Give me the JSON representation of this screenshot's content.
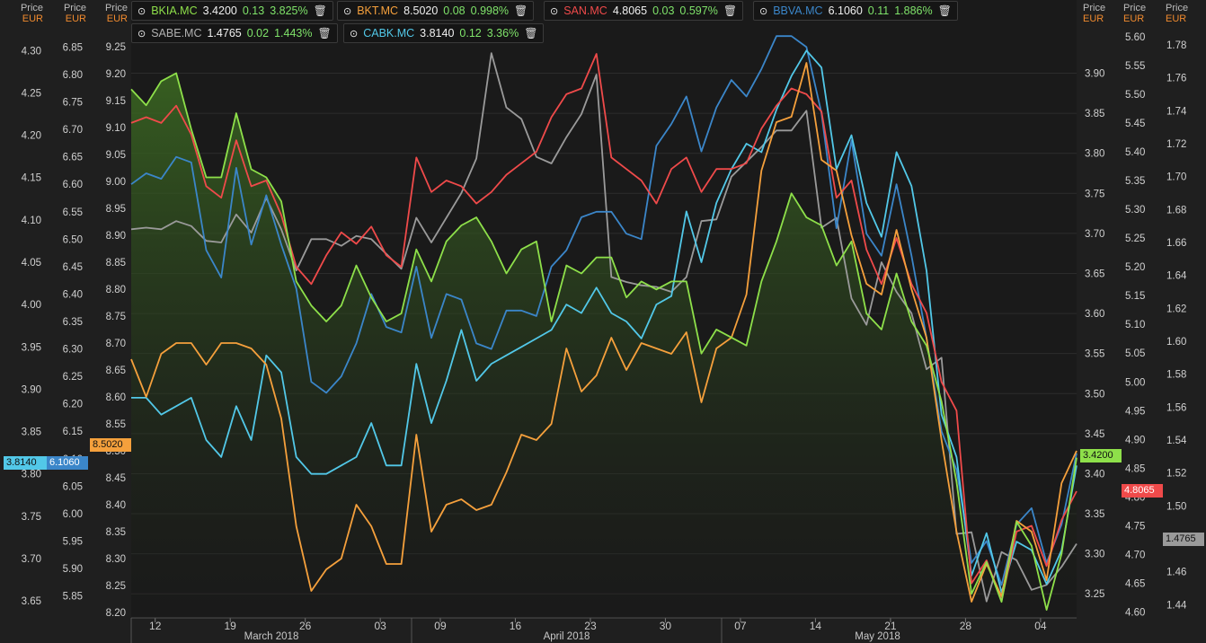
{
  "axis_header": {
    "price": "Price",
    "currency": "EUR"
  },
  "legend": [
    {
      "symbol": "BKIA.MC",
      "value": "3.4200",
      "change": "0.13",
      "change_pct": "3.825%",
      "color": "#8ee04a"
    },
    {
      "symbol": "BKT.MC",
      "value": "8.5020",
      "change": "0.08",
      "change_pct": "0.998%",
      "color": "#f5a03c"
    },
    {
      "symbol": "SAN.MC",
      "value": "4.8065",
      "change": "0.03",
      "change_pct": "0.597%",
      "color": "#ef4a4a"
    },
    {
      "symbol": "BBVA.MC",
      "value": "6.1060",
      "change": "0.11",
      "change_pct": "1.886%",
      "color": "#3b86c9"
    },
    {
      "symbol": "SABE.MC",
      "value": "1.4765",
      "change": "0.02",
      "change_pct": "1.443%",
      "color": "#9a9a9a"
    },
    {
      "symbol": "CABK.MC",
      "value": "3.8140",
      "change": "0.12",
      "change_pct": "3.36%",
      "color": "#52c8e8"
    }
  ],
  "last_value_tags": {
    "cabk": "3.8140",
    "bbva": "6.1060",
    "bkt": "8.5020",
    "bkia": "3.4200",
    "san": "4.8065",
    "sabe": "1.4765"
  },
  "chart_data": {
    "type": "line",
    "x_ticks": [
      "12",
      "19",
      "26",
      "03",
      "09",
      "16",
      "23",
      "30",
      "07",
      "14",
      "21",
      "28",
      "04"
    ],
    "x_month_labels": [
      "March 2018",
      "April 2018",
      "May 2018"
    ],
    "axes": {
      "cabk": {
        "ylim": [
          3.63,
          4.33
        ],
        "ticks": [
          "4.30",
          "4.25",
          "4.20",
          "4.15",
          "4.10",
          "4.05",
          "4.00",
          "3.95",
          "3.90",
          "3.85",
          "3.80",
          "3.75",
          "3.70",
          "3.65"
        ]
      },
      "bbva": {
        "ylim": [
          5.81,
          6.89
        ],
        "ticks": [
          "6.85",
          "6.80",
          "6.75",
          "6.70",
          "6.65",
          "6.60",
          "6.55",
          "6.50",
          "6.45",
          "6.40",
          "6.35",
          "6.30",
          "6.25",
          "6.20",
          "6.15",
          "6.10",
          "6.05",
          "6.00",
          "5.95",
          "5.90",
          "5.85"
        ]
      },
      "bkt": {
        "ylim": [
          8.19,
          9.29
        ],
        "ticks": [
          "9.25",
          "9.20",
          "9.15",
          "9.10",
          "9.05",
          "9.00",
          "8.95",
          "8.90",
          "8.85",
          "8.80",
          "8.75",
          "8.70",
          "8.65",
          "8.60",
          "8.55",
          "8.50",
          "8.45",
          "8.40",
          "8.35",
          "8.30",
          "8.25",
          "8.20"
        ]
      },
      "bkia": {
        "ylim": [
          3.22,
          3.96
        ],
        "ticks": [
          "3.90",
          "3.85",
          "3.80",
          "3.75",
          "3.70",
          "3.65",
          "3.60",
          "3.55",
          "3.50",
          "3.45",
          "3.40",
          "3.35",
          "3.30",
          "3.25"
        ]
      },
      "san": {
        "ylim": [
          4.59,
          5.62
        ],
        "ticks": [
          "5.60",
          "5.55",
          "5.50",
          "5.45",
          "5.40",
          "5.35",
          "5.30",
          "5.25",
          "5.20",
          "5.15",
          "5.10",
          "5.05",
          "5.00",
          "4.95",
          "4.90",
          "4.85",
          "4.80",
          "4.75",
          "4.70",
          "4.65",
          "4.60"
        ]
      },
      "sabe": {
        "ylim": [
          1.432,
          1.792
        ],
        "ticks": [
          "1.78",
          "1.76",
          "1.74",
          "1.72",
          "1.70",
          "1.68",
          "1.66",
          "1.64",
          "1.62",
          "1.60",
          "1.58",
          "1.56",
          "1.54",
          "1.52",
          "1.50",
          "1.46",
          "1.44"
        ]
      }
    },
    "series": [
      {
        "name": "BKIA.MC",
        "axis": "bkia",
        "color": "#8ee04a",
        "values": [
          3.88,
          3.86,
          3.89,
          3.9,
          3.83,
          3.77,
          3.77,
          3.85,
          3.78,
          3.77,
          3.74,
          3.64,
          3.61,
          3.59,
          3.61,
          3.66,
          3.62,
          3.59,
          3.6,
          3.68,
          3.64,
          3.69,
          3.71,
          3.72,
          3.69,
          3.65,
          3.68,
          3.69,
          3.59,
          3.66,
          3.65,
          3.67,
          3.67,
          3.62,
          3.64,
          3.63,
          3.64,
          3.64,
          3.55,
          3.58,
          3.57,
          3.56,
          3.64,
          3.69,
          3.75,
          3.72,
          3.71,
          3.66,
          3.69,
          3.6,
          3.58,
          3.65,
          3.59,
          3.56,
          3.49,
          3.39,
          3.25,
          3.29,
          3.24,
          3.34,
          3.31,
          3.23,
          3.3,
          3.42
        ]
      },
      {
        "name": "BKT.MC",
        "axis": "bkt",
        "color": "#f5a03c",
        "values": [
          8.67,
          8.6,
          8.68,
          8.7,
          8.7,
          8.66,
          8.7,
          8.7,
          8.69,
          8.66,
          8.56,
          8.36,
          8.24,
          8.28,
          8.3,
          8.4,
          8.36,
          8.29,
          8.29,
          8.53,
          8.35,
          8.4,
          8.41,
          8.39,
          8.4,
          8.46,
          8.53,
          8.52,
          8.55,
          8.69,
          8.61,
          8.64,
          8.71,
          8.65,
          8.7,
          8.69,
          8.68,
          8.72,
          8.59,
          8.69,
          8.71,
          8.79,
          9.02,
          9.11,
          9.12,
          9.22,
          9.04,
          9.02,
          8.9,
          8.81,
          8.79,
          8.91,
          8.8,
          8.71,
          8.52,
          8.35,
          8.22,
          8.29,
          8.23,
          8.37,
          8.35,
          8.26,
          8.44,
          8.5
        ]
      },
      {
        "name": "SAN.MC",
        "axis": "san",
        "color": "#ef4a4a",
        "values": [
          5.45,
          5.46,
          5.45,
          5.48,
          5.43,
          5.34,
          5.32,
          5.42,
          5.34,
          5.35,
          5.29,
          5.2,
          5.17,
          5.22,
          5.26,
          5.24,
          5.27,
          5.22,
          5.2,
          5.39,
          5.33,
          5.35,
          5.34,
          5.31,
          5.33,
          5.36,
          5.38,
          5.4,
          5.46,
          5.5,
          5.51,
          5.57,
          5.39,
          5.37,
          5.35,
          5.31,
          5.37,
          5.39,
          5.33,
          5.37,
          5.37,
          5.38,
          5.44,
          5.48,
          5.51,
          5.5,
          5.47,
          5.32,
          5.35,
          5.23,
          5.17,
          5.25,
          5.17,
          5.12,
          5.0,
          4.95,
          4.65,
          4.69,
          4.62,
          4.74,
          4.75,
          4.68,
          4.76,
          4.81
        ]
      },
      {
        "name": "BBVA.MC",
        "axis": "bbva",
        "color": "#3b86c9",
        "values": [
          6.6,
          6.62,
          6.61,
          6.65,
          6.64,
          6.48,
          6.43,
          6.63,
          6.49,
          6.58,
          6.49,
          6.41,
          6.24,
          6.22,
          6.25,
          6.31,
          6.4,
          6.34,
          6.33,
          6.45,
          6.32,
          6.4,
          6.39,
          6.31,
          6.3,
          6.37,
          6.37,
          6.36,
          6.45,
          6.48,
          6.54,
          6.55,
          6.55,
          6.51,
          6.5,
          6.67,
          6.71,
          6.76,
          6.66,
          6.74,
          6.79,
          6.76,
          6.81,
          6.87,
          6.87,
          6.85,
          6.73,
          6.52,
          6.68,
          6.51,
          6.47,
          6.6,
          6.47,
          6.32,
          6.15,
          6.08,
          5.91,
          5.95,
          5.87,
          5.98,
          6.01,
          5.91,
          5.98,
          6.11
        ]
      },
      {
        "name": "SABE.MC",
        "axis": "sabe",
        "color": "#9a9a9a",
        "values": [
          1.668,
          1.669,
          1.668,
          1.673,
          1.67,
          1.661,
          1.66,
          1.677,
          1.666,
          1.687,
          1.668,
          1.643,
          1.662,
          1.662,
          1.658,
          1.664,
          1.662,
          1.653,
          1.644,
          1.675,
          1.66,
          1.675,
          1.69,
          1.711,
          1.775,
          1.742,
          1.735,
          1.712,
          1.708,
          1.724,
          1.738,
          1.762,
          1.639,
          1.636,
          1.634,
          1.633,
          1.63,
          1.639,
          1.673,
          1.674,
          1.7,
          1.709,
          1.718,
          1.728,
          1.728,
          1.74,
          1.669,
          1.675,
          1.626,
          1.61,
          1.648,
          1.63,
          1.617,
          1.583,
          1.59,
          1.483,
          1.484,
          1.442,
          1.472,
          1.467,
          1.449,
          1.452,
          1.463,
          1.477
        ]
      },
      {
        "name": "CABK.MC",
        "axis": "cabk",
        "color": "#52c8e8",
        "values": [
          3.89,
          3.89,
          3.87,
          3.88,
          3.89,
          3.84,
          3.82,
          3.88,
          3.84,
          3.94,
          3.92,
          3.82,
          3.8,
          3.8,
          3.81,
          3.82,
          3.86,
          3.81,
          3.81,
          3.93,
          3.86,
          3.91,
          3.97,
          3.91,
          3.93,
          3.94,
          3.95,
          3.96,
          3.97,
          4.0,
          3.99,
          4.02,
          3.99,
          3.98,
          3.96,
          4.0,
          4.01,
          4.11,
          4.05,
          4.12,
          4.16,
          4.19,
          4.18,
          4.23,
          4.27,
          4.3,
          4.28,
          4.16,
          4.2,
          4.12,
          4.08,
          4.18,
          4.14,
          4.04,
          3.87,
          3.82,
          3.68,
          3.73,
          3.66,
          3.72,
          3.71,
          3.67,
          3.71,
          3.81
        ]
      }
    ]
  }
}
